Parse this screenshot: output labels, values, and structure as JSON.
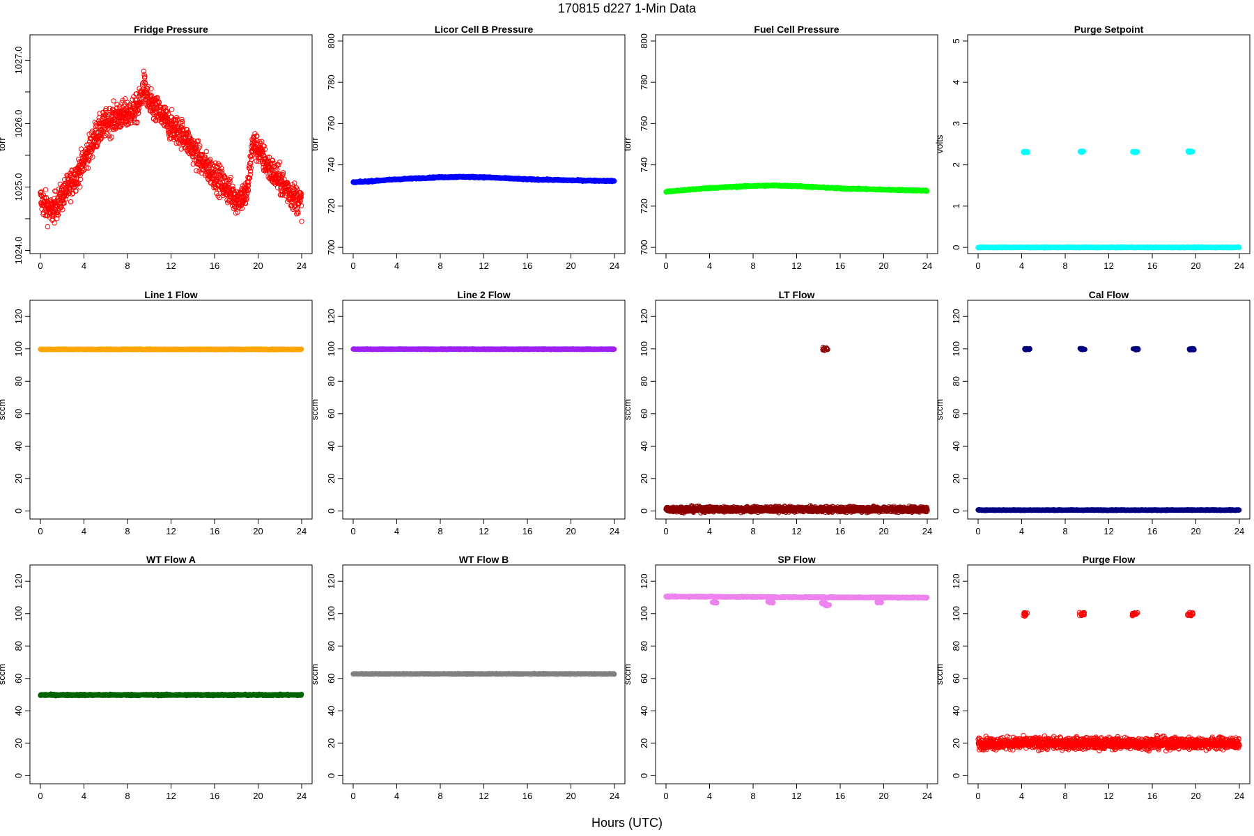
{
  "figure": {
    "title": "170815   d227   1-Min Data",
    "xlabel": "Hours (UTC)"
  },
  "chart_data": [
    {
      "type": "scatter",
      "title": "Fridge Pressure",
      "ylabel": "torr",
      "color": "#ff0000",
      "marker": "open-circle",
      "xlim": [
        0,
        24
      ],
      "xticks": [
        0,
        4,
        8,
        12,
        16,
        20,
        24
      ],
      "ylim": [
        1023.95,
        1027.4
      ],
      "yticks": [
        1024.0,
        1024.5,
        1025.0,
        1025.5,
        1026.0,
        1026.5,
        1027.0
      ],
      "ytick_labels": [
        "1024.0",
        "",
        "1025.0",
        "",
        "1026.0",
        "",
        "1027.0"
      ],
      "series": [
        {
          "x": [
            0,
            1,
            2,
            3,
            4,
            5,
            6,
            7,
            8,
            9,
            9.5,
            10,
            11,
            12,
            13,
            14,
            15,
            16,
            17,
            18,
            19,
            19.5,
            20,
            21,
            22,
            23,
            24
          ],
          "y": [
            1024.8,
            1024.6,
            1024.85,
            1025.1,
            1025.4,
            1025.8,
            1026.0,
            1026.1,
            1026.15,
            1026.25,
            1026.6,
            1026.3,
            1026.15,
            1025.95,
            1025.85,
            1025.6,
            1025.35,
            1025.2,
            1025.0,
            1024.8,
            1024.9,
            1025.7,
            1025.6,
            1025.3,
            1025.1,
            1024.9,
            1024.75
          ]
        }
      ],
      "spread": 0.22
    },
    {
      "type": "scatter",
      "title": "Licor Cell B Pressure",
      "ylabel": "torr",
      "color": "#0000ff",
      "marker": "filled-circle",
      "xlim": [
        0,
        24
      ],
      "xticks": [
        0,
        4,
        8,
        12,
        16,
        20,
        24
      ],
      "ylim": [
        697,
        803
      ],
      "yticks": [
        700,
        720,
        740,
        760,
        780,
        800
      ],
      "ytick_labels": [
        "700",
        "720",
        "740",
        "760",
        "780",
        "800"
      ],
      "series": [
        {
          "x": [
            0,
            4,
            8,
            10,
            12,
            16,
            20,
            24
          ],
          "y": [
            731.5,
            733.0,
            734.0,
            734.2,
            734.0,
            733.0,
            732.5,
            732.2
          ]
        }
      ],
      "spread": 0.3
    },
    {
      "type": "scatter",
      "title": "Fuel Cell Pressure",
      "ylabel": "torr",
      "color": "#00ff00",
      "marker": "filled-circle",
      "xlim": [
        0,
        24
      ],
      "xticks": [
        0,
        4,
        8,
        12,
        16,
        20,
        24
      ],
      "ylim": [
        697,
        803
      ],
      "yticks": [
        700,
        720,
        740,
        760,
        780,
        800
      ],
      "ytick_labels": [
        "700",
        "720",
        "740",
        "760",
        "780",
        "800"
      ],
      "series": [
        {
          "x": [
            0,
            4,
            8,
            10,
            12,
            16,
            20,
            24
          ],
          "y": [
            727.0,
            728.8,
            729.8,
            730.0,
            729.7,
            728.6,
            728.0,
            727.5
          ]
        }
      ],
      "spread": 0.3
    },
    {
      "type": "scatter",
      "title": "Purge Setpoint",
      "ylabel": "volts",
      "color": "#00ffff",
      "marker": "filled-circle",
      "xlim": [
        0,
        24
      ],
      "xticks": [
        0,
        4,
        8,
        12,
        16,
        20,
        24
      ],
      "ylim": [
        -0.15,
        5.15
      ],
      "yticks": [
        0,
        1,
        2,
        3,
        4,
        5
      ],
      "ytick_labels": [
        "0",
        "1",
        "2",
        "3",
        "4",
        "5"
      ],
      "series": [
        {
          "x": [
            0,
            24
          ],
          "y": [
            0,
            0
          ]
        }
      ],
      "spread": 0.01,
      "clusters": [
        {
          "x": 4.4,
          "y": 2.31
        },
        {
          "x": 9.5,
          "y": 2.32
        },
        {
          "x": 14.4,
          "y": 2.31
        },
        {
          "x": 19.5,
          "y": 2.32
        }
      ]
    },
    {
      "type": "scatter",
      "title": "Line 1 Flow",
      "ylabel": "sccm",
      "color": "#ffa500",
      "marker": "filled-circle",
      "xlim": [
        0,
        24
      ],
      "xticks": [
        0,
        4,
        8,
        12,
        16,
        20,
        24
      ],
      "ylim": [
        -5,
        130
      ],
      "yticks": [
        0,
        20,
        40,
        60,
        80,
        100,
        120
      ],
      "ytick_labels": [
        "0",
        "20",
        "40",
        "60",
        "80",
        "100",
        "120"
      ],
      "series": [
        {
          "x": [
            0,
            24
          ],
          "y": [
            99.7,
            99.7
          ]
        }
      ],
      "spread": 0.2
    },
    {
      "type": "scatter",
      "title": "Line 2 Flow",
      "ylabel": "sccm",
      "color": "#a020f0",
      "marker": "filled-circle",
      "xlim": [
        0,
        24
      ],
      "xticks": [
        0,
        4,
        8,
        12,
        16,
        20,
        24
      ],
      "ylim": [
        -5,
        130
      ],
      "yticks": [
        0,
        20,
        40,
        60,
        80,
        100,
        120
      ],
      "ytick_labels": [
        "0",
        "20",
        "40",
        "60",
        "80",
        "100",
        "120"
      ],
      "series": [
        {
          "x": [
            0,
            24
          ],
          "y": [
            99.8,
            99.8
          ]
        }
      ],
      "spread": 0.2
    },
    {
      "type": "scatter",
      "title": "LT Flow",
      "ylabel": "sccm",
      "color": "#8b0000",
      "marker": "open-circle",
      "xlim": [
        0,
        24
      ],
      "xticks": [
        0,
        4,
        8,
        12,
        16,
        20,
        24
      ],
      "ylim": [
        -5,
        130
      ],
      "yticks": [
        0,
        20,
        40,
        60,
        80,
        100,
        120
      ],
      "ytick_labels": [
        "0",
        "20",
        "40",
        "60",
        "80",
        "100",
        "120"
      ],
      "series": [
        {
          "x": [
            0,
            24
          ],
          "y": [
            1.0,
            1.0
          ]
        }
      ],
      "spread": 1.6,
      "clusters": [
        {
          "x": 14.6,
          "y": 100.0
        }
      ]
    },
    {
      "type": "scatter",
      "title": "Cal Flow",
      "ylabel": "sccm",
      "color": "#000080",
      "marker": "filled-circle",
      "xlim": [
        0,
        24
      ],
      "xticks": [
        0,
        4,
        8,
        12,
        16,
        20,
        24
      ],
      "ylim": [
        -5,
        130
      ],
      "yticks": [
        0,
        20,
        40,
        60,
        80,
        100,
        120
      ],
      "ytick_labels": [
        "0",
        "20",
        "40",
        "60",
        "80",
        "100",
        "120"
      ],
      "series": [
        {
          "x": [
            0,
            24
          ],
          "y": [
            0.5,
            0.5
          ]
        }
      ],
      "spread": 0.2,
      "clusters": [
        {
          "x": 4.5,
          "y": 99.8
        },
        {
          "x": 9.6,
          "y": 99.8
        },
        {
          "x": 14.5,
          "y": 99.8
        },
        {
          "x": 19.6,
          "y": 99.8
        }
      ]
    },
    {
      "type": "scatter",
      "title": "WT Flow A",
      "ylabel": "sccm",
      "color": "#006400",
      "marker": "filled-circle",
      "xlim": [
        0,
        24
      ],
      "xticks": [
        0,
        4,
        8,
        12,
        16,
        20,
        24
      ],
      "ylim": [
        -5,
        130
      ],
      "yticks": [
        0,
        20,
        40,
        60,
        80,
        100,
        120
      ],
      "ytick_labels": [
        "0",
        "20",
        "40",
        "60",
        "80",
        "100",
        "120"
      ],
      "series": [
        {
          "x": [
            0,
            24
          ],
          "y": [
            49.8,
            49.8
          ]
        }
      ],
      "spread": 0.4
    },
    {
      "type": "scatter",
      "title": "WT Flow B",
      "ylabel": "sccm",
      "color": "#808080",
      "marker": "filled-circle",
      "xlim": [
        0,
        24
      ],
      "xticks": [
        0,
        4,
        8,
        12,
        16,
        20,
        24
      ],
      "ylim": [
        -5,
        130
      ],
      "yticks": [
        0,
        20,
        40,
        60,
        80,
        100,
        120
      ],
      "ytick_labels": [
        "0",
        "20",
        "40",
        "60",
        "80",
        "100",
        "120"
      ],
      "series": [
        {
          "x": [
            0,
            24
          ],
          "y": [
            62.8,
            62.8
          ]
        }
      ],
      "spread": 0.2
    },
    {
      "type": "scatter",
      "title": "SP Flow",
      "ylabel": "sccm",
      "color": "#ee82ee",
      "marker": "filled-circle",
      "xlim": [
        0,
        24
      ],
      "xticks": [
        0,
        4,
        8,
        12,
        16,
        20,
        24
      ],
      "ylim": [
        -5,
        130
      ],
      "yticks": [
        0,
        20,
        40,
        60,
        80,
        100,
        120
      ],
      "ytick_labels": [
        "0",
        "20",
        "40",
        "60",
        "80",
        "100",
        "120"
      ],
      "series": [
        {
          "x": [
            0,
            4.3,
            4.6,
            9.5,
            9.8,
            14.4,
            14.7,
            19.5,
            19.8,
            24
          ],
          "y": [
            110.5,
            110.5,
            110.4,
            110.3,
            110.2,
            110.1,
            110.1,
            110.0,
            110.0,
            109.9
          ]
        }
      ],
      "spread": 0.3,
      "clusters": [
        {
          "x": 4.5,
          "y": 107.0
        },
        {
          "x": 9.6,
          "y": 107.0
        },
        {
          "x": 14.5,
          "y": 106.5
        },
        {
          "x": 14.8,
          "y": 105.0
        },
        {
          "x": 19.6,
          "y": 107.0
        }
      ]
    },
    {
      "type": "scatter",
      "title": "Purge Flow",
      "ylabel": "sccm",
      "color": "#ff0000",
      "marker": "open-circle",
      "xlim": [
        0,
        24
      ],
      "xticks": [
        0,
        4,
        8,
        12,
        16,
        20,
        24
      ],
      "ylim": [
        -5,
        130
      ],
      "yticks": [
        0,
        20,
        40,
        60,
        80,
        100,
        120
      ],
      "ytick_labels": [
        "0",
        "20",
        "40",
        "60",
        "80",
        "100",
        "120"
      ],
      "series": [
        {
          "x": [
            0,
            24
          ],
          "y": [
            20.0,
            20.0
          ]
        }
      ],
      "spread": 3.5,
      "clusters": [
        {
          "x": 4.4,
          "y": 99.5
        },
        {
          "x": 9.5,
          "y": 99.8
        },
        {
          "x": 14.4,
          "y": 99.6
        },
        {
          "x": 19.5,
          "y": 99.7
        }
      ]
    }
  ]
}
